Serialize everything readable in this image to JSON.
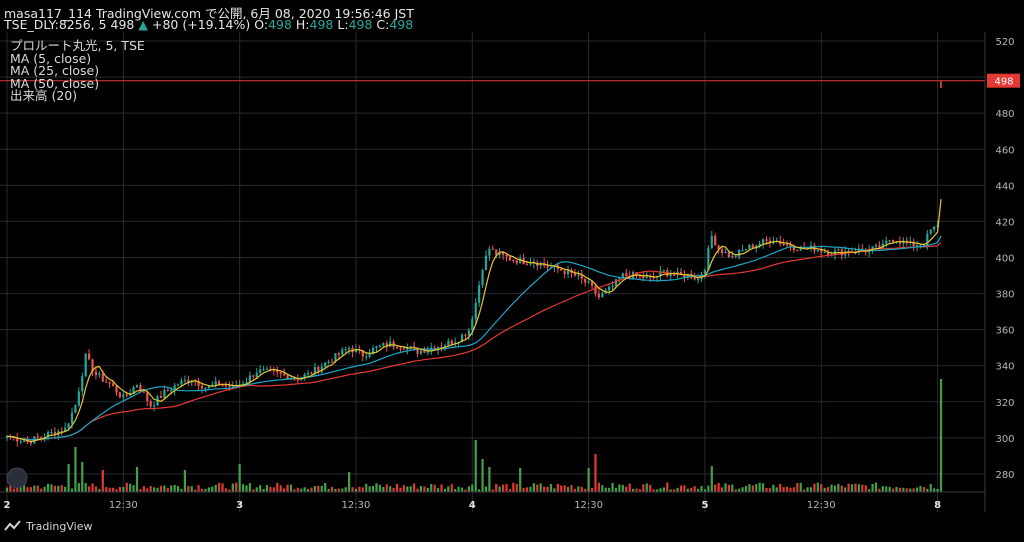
{
  "header": {
    "line1": "masa117_114 TradingView.com で公開, 6月 08, 2020 19:56:46 JST",
    "symbol": "TSE_DLY:8256, 5",
    "last": "498",
    "arrow": "▲",
    "change": "+80 (+19.14%)",
    "o_label": "O:",
    "o": "498",
    "h_label": "H:",
    "h": "498",
    "l_label": "L:",
    "l": "498",
    "c_label": "C:",
    "c": "498"
  },
  "legend": [
    "プロルート丸光, 5, TSE",
    "MA (5, close)",
    "MA (25, close)",
    "MA (50, close)",
    "出来高 (20)"
  ],
  "footer": {
    "logo_text": "TradingView"
  },
  "colors": {
    "up": "#26a69a",
    "down": "#ef5350",
    "vol_up": "#4caf50",
    "vol_down": "#f44336",
    "ma5": "#e9c62b",
    "ma25": "#1aa6c6",
    "ma50": "#e53935",
    "price_line": "#e53935",
    "grid": "#262a33",
    "axis_text": "#b2b5be"
  },
  "chart_data": {
    "type": "candlestick",
    "interval": "5 min",
    "ylim": [
      270,
      525
    ],
    "y_ticks": [
      520,
      500,
      480,
      460,
      440,
      420,
      400,
      380,
      360,
      340,
      320,
      300,
      280
    ],
    "x_tick_labels": [
      "2",
      "12:30",
      "3",
      "12:30",
      "4",
      "12:30",
      "5",
      "12:30",
      "8"
    ],
    "last_price_label": "498",
    "grid": true,
    "close_anchors": [
      [
        0,
        301
      ],
      [
        6,
        298
      ],
      [
        12,
        302
      ],
      [
        17,
        305
      ],
      [
        20,
        318
      ],
      [
        23,
        345
      ],
      [
        26,
        335
      ],
      [
        30,
        330
      ],
      [
        34,
        322
      ],
      [
        38,
        330
      ],
      [
        42,
        318
      ],
      [
        46,
        325
      ],
      [
        50,
        330
      ],
      [
        54,
        333
      ],
      [
        58,
        328
      ],
      [
        62,
        330
      ],
      [
        66,
        328
      ],
      [
        70,
        332
      ],
      [
        73,
        337
      ],
      [
        78,
        336
      ],
      [
        84,
        333
      ],
      [
        88,
        335
      ],
      [
        92,
        340
      ],
      [
        96,
        345
      ],
      [
        100,
        350
      ],
      [
        104,
        346
      ],
      [
        108,
        350
      ],
      [
        112,
        352
      ],
      [
        116,
        351
      ],
      [
        120,
        348
      ],
      [
        124,
        350
      ],
      [
        128,
        352
      ],
      [
        132,
        355
      ],
      [
        135,
        360
      ],
      [
        137,
        375
      ],
      [
        139,
        395
      ],
      [
        141,
        405
      ],
      [
        143,
        402
      ],
      [
        146,
        400
      ],
      [
        150,
        398
      ],
      [
        154,
        398
      ],
      [
        158,
        395
      ],
      [
        162,
        393
      ],
      [
        166,
        390
      ],
      [
        170,
        385
      ],
      [
        173,
        378
      ],
      [
        176,
        382
      ],
      [
        180,
        390
      ],
      [
        184,
        390
      ],
      [
        188,
        388
      ],
      [
        192,
        392
      ],
      [
        196,
        390
      ],
      [
        200,
        390
      ],
      [
        202,
        388
      ],
      [
        204,
        395
      ],
      [
        206,
        412
      ],
      [
        208,
        405
      ],
      [
        212,
        400
      ],
      [
        216,
        405
      ],
      [
        220,
        408
      ],
      [
        224,
        410
      ],
      [
        228,
        407
      ],
      [
        232,
        405
      ],
      [
        236,
        405
      ],
      [
        240,
        403
      ],
      [
        244,
        403
      ],
      [
        248,
        404
      ],
      [
        252,
        404
      ],
      [
        256,
        406
      ],
      [
        258,
        410
      ],
      [
        260,
        410
      ],
      [
        264,
        407
      ],
      [
        268,
        408
      ],
      [
        270,
        415
      ],
      [
        272,
        417
      ],
      [
        273,
        498
      ]
    ],
    "volume_ylim": [
      0,
      1200
    ],
    "volume_spikes": [
      [
        18,
        280
      ],
      [
        20,
        450
      ],
      [
        22,
        300
      ],
      [
        28,
        220
      ],
      [
        38,
        250
      ],
      [
        52,
        220
      ],
      [
        68,
        280
      ],
      [
        100,
        200
      ],
      [
        137,
        520
      ],
      [
        139,
        330
      ],
      [
        141,
        250
      ],
      [
        150,
        240
      ],
      [
        170,
        240
      ],
      [
        172,
        380
      ],
      [
        206,
        260
      ],
      [
        270,
        80
      ],
      [
        273,
        1130
      ]
    ]
  }
}
